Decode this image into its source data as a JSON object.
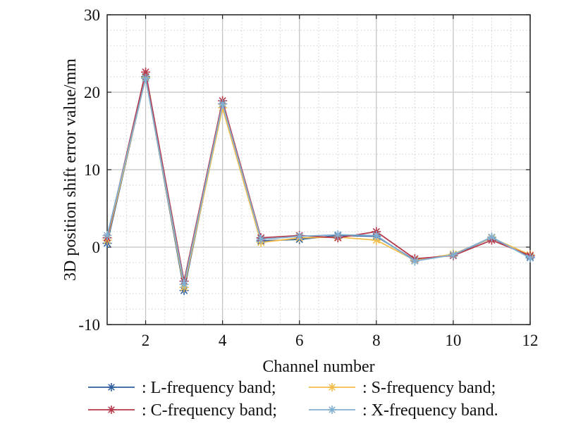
{
  "chart_data": {
    "type": "line",
    "title": "",
    "xlabel": "Channel number",
    "ylabel": "3D position shift error value/mm",
    "xlim": [
      1,
      12
    ],
    "ylim": [
      -10,
      30
    ],
    "xticks": [
      2,
      4,
      6,
      8,
      10,
      12
    ],
    "yticks": [
      -10,
      0,
      10,
      20,
      30
    ],
    "grid": true,
    "minor_grid": true,
    "legend_position": "bottom",
    "x": [
      1,
      2,
      3,
      4,
      5,
      6,
      7,
      8,
      9,
      10,
      11,
      12
    ],
    "series": [
      {
        "name": ": L-frequency band;",
        "color": "#2f5f9e",
        "marker": "asterisk",
        "values": [
          0.5,
          22.0,
          -5.6,
          18.5,
          0.8,
          1.0,
          1.5,
          1.4,
          -1.7,
          -1.0,
          1.2,
          -1.3
        ]
      },
      {
        "name": ": S-frequency band;",
        "color": "#f2bd4b",
        "marker": "asterisk",
        "values": [
          0.9,
          21.9,
          -5.2,
          18.0,
          0.6,
          1.2,
          1.3,
          0.9,
          -1.7,
          -0.9,
          1.2,
          -1.0
        ]
      },
      {
        "name": ": C-frequency band;",
        "color": "#b43a4c",
        "marker": "asterisk",
        "values": [
          1.2,
          22.6,
          -4.4,
          18.9,
          1.2,
          1.5,
          1.2,
          2.0,
          -1.5,
          -1.1,
          0.9,
          -1.1
        ]
      },
      {
        "name": ": X-frequency band.",
        "color": "#82b0d2",
        "marker": "asterisk",
        "values": [
          1.5,
          21.8,
          -4.8,
          18.5,
          1.0,
          1.4,
          1.6,
          1.5,
          -1.8,
          -1.0,
          1.3,
          -1.4
        ]
      }
    ]
  }
}
